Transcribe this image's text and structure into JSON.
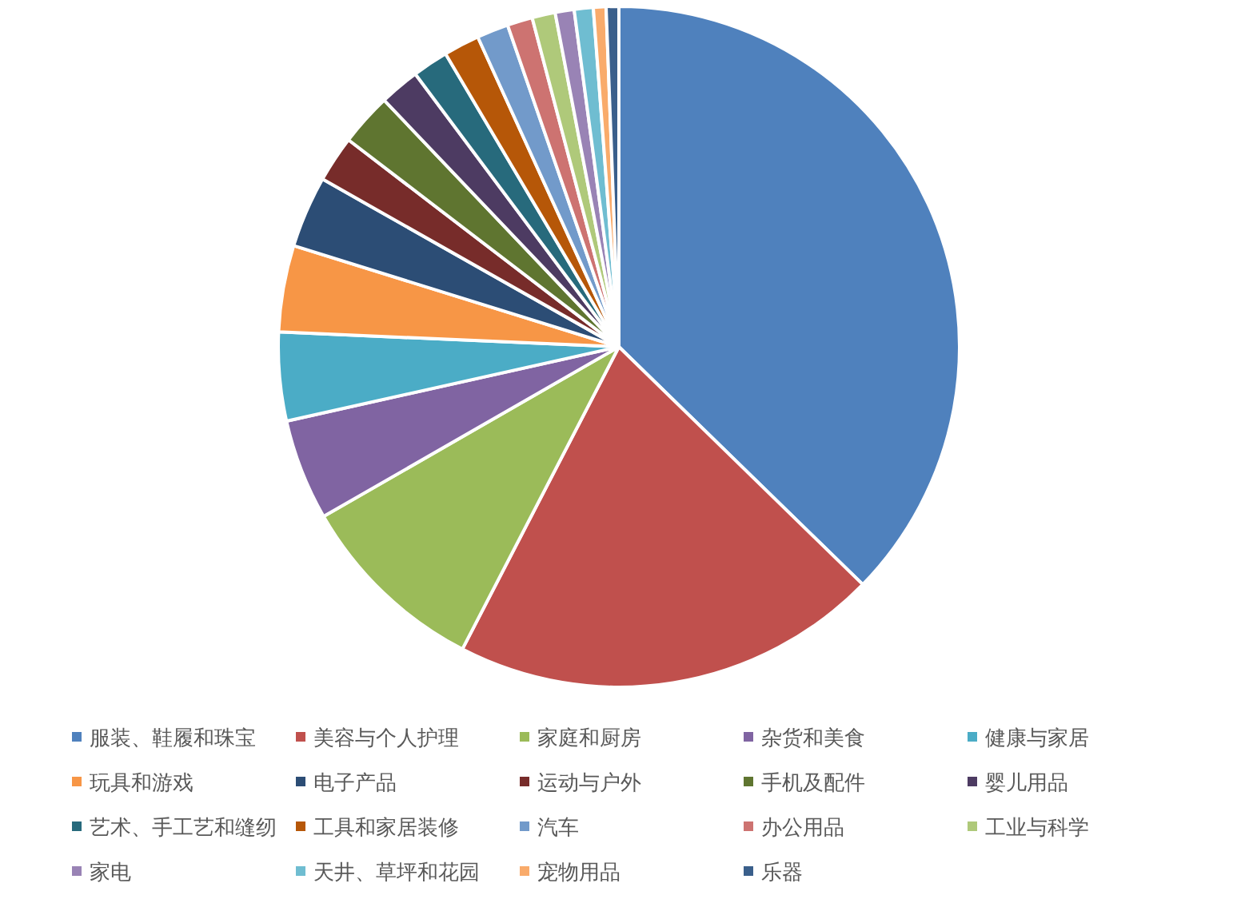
{
  "chart_data": {
    "type": "pie",
    "legend": "bottom",
    "categories": [
      "服装、鞋履和珠宝",
      "美容与个人护理",
      "家庭和厨房",
      "杂货和美食",
      "健康与家居",
      "玩具和游戏",
      "电子产品",
      "运动与户外",
      "手机及配件",
      "婴儿用品",
      "艺术、手工艺和缝纫",
      "工具和家居装修",
      "汽车",
      "办公用品",
      "工业与科学",
      "家电",
      "天井、草坪和花园",
      "宠物用品",
      "乐器"
    ],
    "values": [
      37.3,
      20.3,
      9.1,
      4.8,
      4.2,
      4.1,
      3.4,
      2.2,
      2.5,
      1.9,
      1.7,
      1.7,
      1.5,
      1.2,
      1.1,
      0.9,
      0.9,
      0.6,
      0.6
    ],
    "colors": [
      "#4f81bd",
      "#c0504d",
      "#9bbb59",
      "#8064a2",
      "#4bacc6",
      "#f79646",
      "#2c4d75",
      "#772c2a",
      "#5f7530",
      "#4d3b62",
      "#276a7c",
      "#b65708",
      "#729aca",
      "#cd7371",
      "#afc97a",
      "#9983b5",
      "#6fbdd1",
      "#f9ab6b",
      "#3a5f8b"
    ]
  }
}
